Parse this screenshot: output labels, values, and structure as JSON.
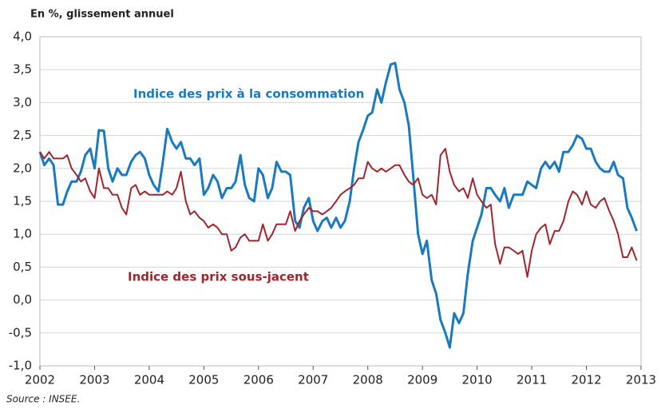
{
  "chart_data": {
    "type": "line",
    "subtitle": "En %, glissement annuel",
    "source": "Source : INSEE.",
    "x": [
      2002,
      2002.08,
      2002.17,
      2002.25,
      2002.33,
      2002.42,
      2002.5,
      2002.58,
      2002.67,
      2002.75,
      2002.83,
      2002.92,
      2003,
      2003.08,
      2003.17,
      2003.25,
      2003.33,
      2003.42,
      2003.5,
      2003.58,
      2003.67,
      2003.75,
      2003.83,
      2003.92,
      2004,
      2004.08,
      2004.17,
      2004.25,
      2004.33,
      2004.42,
      2004.5,
      2004.58,
      2004.67,
      2004.75,
      2004.83,
      2004.92,
      2005,
      2005.08,
      2005.17,
      2005.25,
      2005.33,
      2005.42,
      2005.5,
      2005.58,
      2005.67,
      2005.75,
      2005.83,
      2005.92,
      2006,
      2006.08,
      2006.17,
      2006.25,
      2006.33,
      2006.42,
      2006.5,
      2006.58,
      2006.67,
      2006.75,
      2006.83,
      2006.92,
      2007,
      2007.08,
      2007.17,
      2007.25,
      2007.33,
      2007.42,
      2007.5,
      2007.58,
      2007.67,
      2007.75,
      2007.83,
      2007.92,
      2008,
      2008.08,
      2008.17,
      2008.25,
      2008.33,
      2008.42,
      2008.5,
      2008.58,
      2008.67,
      2008.75,
      2008.83,
      2008.92,
      2009,
      2009.08,
      2009.17,
      2009.25,
      2009.33,
      2009.42,
      2009.5,
      2009.58,
      2009.67,
      2009.75,
      2009.83,
      2009.92,
      2010,
      2010.08,
      2010.17,
      2010.25,
      2010.33,
      2010.42,
      2010.5,
      2010.58,
      2010.67,
      2010.75,
      2010.83,
      2010.92,
      2011,
      2011.08,
      2011.17,
      2011.25,
      2011.33,
      2011.42,
      2011.5,
      2011.58,
      2011.67,
      2011.75,
      2011.83,
      2011.92,
      2012,
      2012.08,
      2012.17,
      2012.25,
      2012.33,
      2012.42,
      2012.5,
      2012.58,
      2012.67,
      2012.75,
      2012.83,
      2012.92
    ],
    "series": [
      {
        "name": "Indice des prix à la consommation",
        "color": "#1a7abf",
        "values": [
          2.25,
          2.05,
          2.15,
          2.05,
          1.45,
          1.45,
          1.65,
          1.8,
          1.8,
          1.95,
          2.2,
          2.3,
          2.0,
          2.58,
          2.57,
          2.0,
          1.8,
          2.0,
          1.9,
          1.9,
          2.1,
          2.2,
          2.25,
          2.15,
          1.9,
          1.75,
          1.65,
          2.1,
          2.6,
          2.4,
          2.3,
          2.4,
          2.15,
          2.15,
          2.05,
          2.15,
          1.6,
          1.7,
          1.9,
          1.8,
          1.55,
          1.7,
          1.7,
          1.8,
          2.2,
          1.75,
          1.55,
          1.5,
          2.0,
          1.9,
          1.55,
          1.7,
          2.1,
          1.95,
          1.95,
          1.9,
          1.2,
          1.1,
          1.4,
          1.55,
          1.2,
          1.05,
          1.2,
          1.25,
          1.1,
          1.25,
          1.1,
          1.2,
          1.5,
          2.0,
          2.4,
          2.6,
          2.8,
          2.85,
          3.2,
          3.0,
          3.3,
          3.58,
          3.6,
          3.2,
          3.0,
          2.65,
          1.9,
          1.0,
          0.7,
          0.9,
          0.3,
          0.1,
          -0.3,
          -0.5,
          -0.72,
          -0.2,
          -0.35,
          -0.2,
          0.4,
          0.9,
          1.1,
          1.3,
          1.7,
          1.7,
          1.6,
          1.5,
          1.7,
          1.4,
          1.6,
          1.6,
          1.6,
          1.8,
          1.75,
          1.7,
          2.0,
          2.1,
          2.0,
          2.1,
          1.95,
          2.25,
          2.25,
          2.35,
          2.5,
          2.45,
          2.3,
          2.3,
          2.1,
          2.0,
          1.95,
          1.95,
          2.1,
          1.9,
          1.85,
          1.4,
          1.25,
          1.05
        ]
      },
      {
        "name": "Indice des prix sous-jacent",
        "color": "#a0262b",
        "values": [
          2.25,
          2.15,
          2.25,
          2.15,
          2.15,
          2.15,
          2.2,
          2.0,
          1.9,
          1.8,
          1.85,
          1.65,
          1.55,
          2.0,
          1.7,
          1.7,
          1.6,
          1.6,
          1.4,
          1.3,
          1.7,
          1.75,
          1.6,
          1.65,
          1.6,
          1.6,
          1.6,
          1.6,
          1.65,
          1.6,
          1.7,
          1.95,
          1.5,
          1.3,
          1.35,
          1.25,
          1.2,
          1.1,
          1.15,
          1.1,
          1.0,
          1.0,
          0.75,
          0.8,
          0.95,
          1.0,
          0.9,
          0.9,
          0.9,
          1.15,
          0.9,
          1.0,
          1.15,
          1.15,
          1.15,
          1.35,
          1.05,
          1.2,
          1.3,
          1.4,
          1.35,
          1.35,
          1.3,
          1.35,
          1.4,
          1.5,
          1.6,
          1.65,
          1.7,
          1.75,
          1.85,
          1.85,
          2.1,
          2.0,
          1.95,
          2.0,
          1.95,
          2.0,
          2.05,
          2.05,
          1.9,
          1.8,
          1.75,
          1.85,
          1.6,
          1.55,
          1.6,
          1.45,
          2.2,
          2.3,
          1.95,
          1.75,
          1.65,
          1.7,
          1.55,
          1.85,
          1.6,
          1.5,
          1.4,
          1.45,
          0.85,
          0.55,
          0.8,
          0.8,
          0.75,
          0.7,
          0.75,
          0.35,
          0.75,
          1.0,
          1.1,
          1.15,
          0.85,
          1.05,
          1.05,
          1.2,
          1.5,
          1.65,
          1.6,
          1.45,
          1.65,
          1.45,
          1.4,
          1.5,
          1.55,
          1.35,
          1.2,
          1.0,
          0.65,
          0.65,
          0.8,
          0.6
        ]
      }
    ],
    "xlim": [
      2002,
      2013
    ],
    "xticks": [
      2002,
      2003,
      2004,
      2005,
      2006,
      2007,
      2008,
      2009,
      2010,
      2011,
      2012,
      2013
    ],
    "ylim": [
      -1,
      4
    ],
    "yticks": [
      {
        "value": -1,
        "label": "-1,0"
      },
      {
        "value": -0.5,
        "label": "-0,5"
      },
      {
        "value": 0,
        "label": "0,0"
      },
      {
        "value": 0.5,
        "label": "0,5"
      },
      {
        "value": 1,
        "label": "1,0"
      },
      {
        "value": 1.5,
        "label": "1,5"
      },
      {
        "value": 2,
        "label": "2,0"
      },
      {
        "value": 2.5,
        "label": "2,5"
      },
      {
        "value": 3,
        "label": "3,0"
      },
      {
        "value": 3.5,
        "label": "3,5"
      },
      {
        "value": 4,
        "label": "4,0"
      }
    ],
    "grid": true
  }
}
